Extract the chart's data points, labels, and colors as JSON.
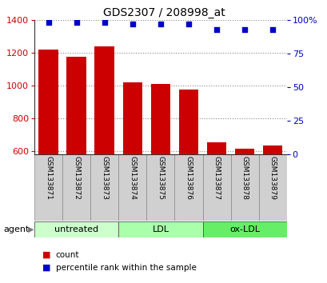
{
  "title": "GDS2307 / 208998_at",
  "samples": [
    "GSM133871",
    "GSM133872",
    "GSM133873",
    "GSM133874",
    "GSM133875",
    "GSM133876",
    "GSM133877",
    "GSM133878",
    "GSM133879"
  ],
  "counts": [
    1218,
    1175,
    1240,
    1020,
    1008,
    975,
    655,
    615,
    632
  ],
  "percentile_ranks": [
    98,
    98,
    98,
    97,
    97,
    97,
    93,
    93,
    93
  ],
  "groups": [
    {
      "label": "untreated",
      "start": 0,
      "end": 3,
      "color": "#ccffcc"
    },
    {
      "label": "LDL",
      "start": 3,
      "end": 6,
      "color": "#aaffaa"
    },
    {
      "label": "ox-LDL",
      "start": 6,
      "end": 9,
      "color": "#66ee66"
    }
  ],
  "ylim_left": [
    580,
    1400
  ],
  "ylim_right": [
    0,
    100
  ],
  "yticks_left": [
    600,
    800,
    1000,
    1200,
    1400
  ],
  "yticks_right": [
    0,
    25,
    50,
    75,
    100
  ],
  "bar_color": "#cc0000",
  "dot_color": "#0000cc",
  "bar_width": 0.7,
  "background_color": "#ffffff",
  "plot_bg_color": "#ffffff",
  "grid_color": "#888888",
  "sample_box_color": "#d0d0d0",
  "left_label_color": "#cc0000",
  "right_label_color": "#0000cc",
  "agent_label": "agent",
  "legend_count_label": "count",
  "legend_pct_label": "percentile rank within the sample",
  "title_fontsize": 10,
  "axis_fontsize": 8,
  "sample_fontsize": 6.5,
  "group_fontsize": 8
}
